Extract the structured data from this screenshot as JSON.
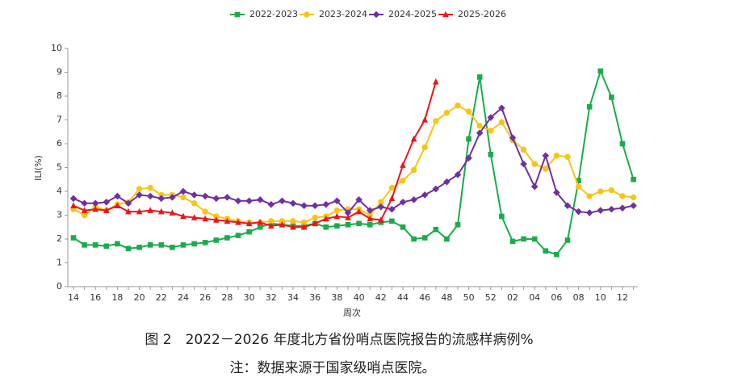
{
  "chart_data": {
    "type": "line",
    "title": "图 2　2022－2026 年度北方省份哨点医院报告的流感样病例%",
    "note": "注：数据来源于国家级哨点医院。",
    "x_label": "周次",
    "y_label": "ILI(%)",
    "categories": [
      "14",
      null,
      "16",
      null,
      "18",
      null,
      "20",
      null,
      "22",
      null,
      "24",
      null,
      "26",
      null,
      "28",
      null,
      "30",
      null,
      "32",
      null,
      "34",
      null,
      "36",
      null,
      "38",
      null,
      "40",
      null,
      "42",
      null,
      "44",
      null,
      "46",
      null,
      "48",
      null,
      "50",
      null,
      "52",
      null,
      "02",
      null,
      "04",
      null,
      "06",
      null,
      "08",
      null,
      "10",
      null,
      "12",
      null
    ],
    "ylim": [
      0,
      10
    ],
    "yticks": [
      0,
      1,
      2,
      3,
      4,
      5,
      6,
      7,
      8,
      9,
      10
    ],
    "grid": false,
    "legend": "top",
    "series": [
      {
        "name": "2022-2023",
        "color": "#1aab4b",
        "marker": "square",
        "values": [
          2.05,
          1.75,
          1.75,
          1.7,
          1.8,
          1.6,
          1.65,
          1.75,
          1.75,
          1.65,
          1.75,
          1.8,
          1.85,
          1.95,
          2.05,
          2.15,
          2.3,
          2.5,
          2.65,
          2.6,
          2.55,
          2.55,
          2.65,
          2.5,
          2.55,
          2.6,
          2.65,
          2.6,
          2.7,
          2.75,
          2.5,
          2.0,
          2.05,
          2.4,
          2.0,
          2.6,
          6.2,
          8.8,
          5.55,
          2.95,
          1.9,
          2.0,
          2.0,
          1.5,
          1.35,
          1.95,
          4.45,
          7.55,
          9.05,
          7.95,
          6.0,
          4.5
        ]
      },
      {
        "name": "2023-2024",
        "color": "#f5c518",
        "marker": "circle",
        "values": [
          3.25,
          3.0,
          3.35,
          3.2,
          3.45,
          3.55,
          4.1,
          4.15,
          3.85,
          3.85,
          3.75,
          3.5,
          3.15,
          2.95,
          2.85,
          2.75,
          2.7,
          2.7,
          2.75,
          2.75,
          2.75,
          2.7,
          2.9,
          2.95,
          3.2,
          3.25,
          3.25,
          3.0,
          3.55,
          4.15,
          4.45,
          4.9,
          5.85,
          6.95,
          7.3,
          7.6,
          7.35,
          6.75,
          6.55,
          6.9,
          6.15,
          5.75,
          5.15,
          4.95,
          5.5,
          5.45,
          4.2,
          3.8,
          4.0,
          4.05,
          3.8,
          3.75
        ]
      },
      {
        "name": "2024-2025",
        "color": "#7030a0",
        "marker": "diamond",
        "values": [
          3.7,
          3.5,
          3.5,
          3.55,
          3.8,
          3.5,
          3.85,
          3.8,
          3.7,
          3.75,
          4.0,
          3.85,
          3.8,
          3.7,
          3.75,
          3.6,
          3.6,
          3.65,
          3.45,
          3.6,
          3.5,
          3.4,
          3.4,
          3.45,
          3.6,
          3.1,
          3.65,
          3.2,
          3.35,
          3.25,
          3.55,
          3.65,
          3.85,
          4.1,
          4.4,
          4.7,
          5.4,
          6.45,
          7.1,
          7.5,
          6.25,
          5.15,
          4.2,
          5.5,
          3.95,
          3.4,
          3.15,
          3.1,
          3.2,
          3.25,
          3.3,
          3.4
        ]
      },
      {
        "name": "2025-2026",
        "color": "#e8161c",
        "marker": "triangle",
        "values": [
          3.4,
          3.2,
          3.25,
          3.2,
          3.4,
          3.15,
          3.15,
          3.2,
          3.15,
          3.1,
          2.95,
          2.9,
          2.85,
          2.8,
          2.75,
          2.7,
          2.65,
          2.7,
          2.55,
          2.6,
          2.5,
          2.5,
          2.65,
          2.85,
          2.95,
          2.9,
          3.15,
          2.85,
          2.8,
          3.7,
          5.1,
          6.2,
          7.0,
          8.6,
          null,
          null,
          null,
          null,
          null,
          null,
          null,
          null,
          null,
          null,
          null,
          null,
          null,
          null,
          null,
          null,
          null,
          null
        ]
      }
    ]
  }
}
